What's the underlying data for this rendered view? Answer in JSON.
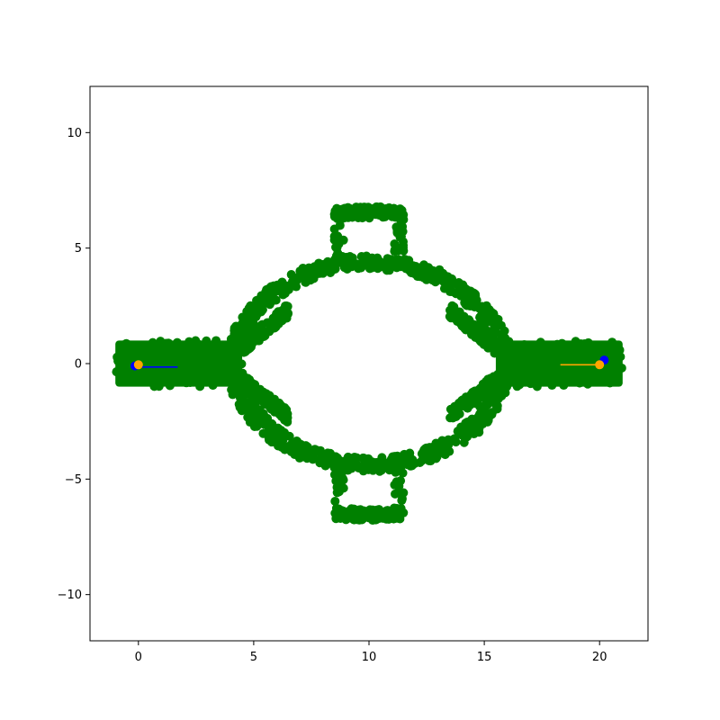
{
  "chart_data": {
    "type": "scatter",
    "title": "",
    "xlabel": "",
    "ylabel": "",
    "xlim": [
      -2.1,
      22.1
    ],
    "ylim": [
      -12,
      12
    ],
    "grid": false,
    "legend": "none",
    "xticks": [
      {
        "value": 0,
        "label": "0"
      },
      {
        "value": 5,
        "label": "5"
      },
      {
        "value": 10,
        "label": "10"
      },
      {
        "value": 15,
        "label": "15"
      },
      {
        "value": 20,
        "label": "20"
      }
    ],
    "yticks": [
      {
        "value": -10,
        "label": "−10"
      },
      {
        "value": -5,
        "label": "−5"
      },
      {
        "value": 0,
        "label": "0"
      },
      {
        "value": 5,
        "label": "5"
      },
      {
        "value": 10,
        "label": "10"
      }
    ],
    "colors": {
      "cloud": "#008000",
      "agent_a": "#0000ff",
      "agent_b": "#ffa500"
    },
    "regions": {
      "corridor_left": {
        "x": [
          -1,
          4.5
        ],
        "y": [
          -1,
          1
        ]
      },
      "corridor_right": {
        "x": [
          15.5,
          21
        ],
        "y": [
          -1,
          1
        ]
      },
      "ring": {
        "cx": 10,
        "cy": 0,
        "r_inner": 4,
        "r_outer": 4.6
      },
      "upper_arc": {
        "cx": 10,
        "cy": 0,
        "r": 6.8,
        "x": [
          8.5,
          11.5
        ]
      },
      "lower_arc": {
        "cx": 10,
        "cy": 0,
        "r": 6.8,
        "x": [
          8.5,
          11.5
        ]
      }
    },
    "series": [
      {
        "color": "#0000ff",
        "points": [
          {
            "x": -0.15,
            "y": -0.1
          },
          {
            "x": 20.2,
            "y": 0.15
          }
        ],
        "line": [
          {
            "x": -0.15,
            "y": -0.15
          },
          {
            "x": 1.7,
            "y": -0.15
          }
        ]
      },
      {
        "color": "#ffa500",
        "points": [
          {
            "x": 0.0,
            "y": -0.05
          },
          {
            "x": 20.0,
            "y": -0.05
          }
        ],
        "line": [
          {
            "x": 18.3,
            "y": -0.05
          },
          {
            "x": 20.0,
            "y": -0.05
          }
        ]
      }
    ]
  }
}
